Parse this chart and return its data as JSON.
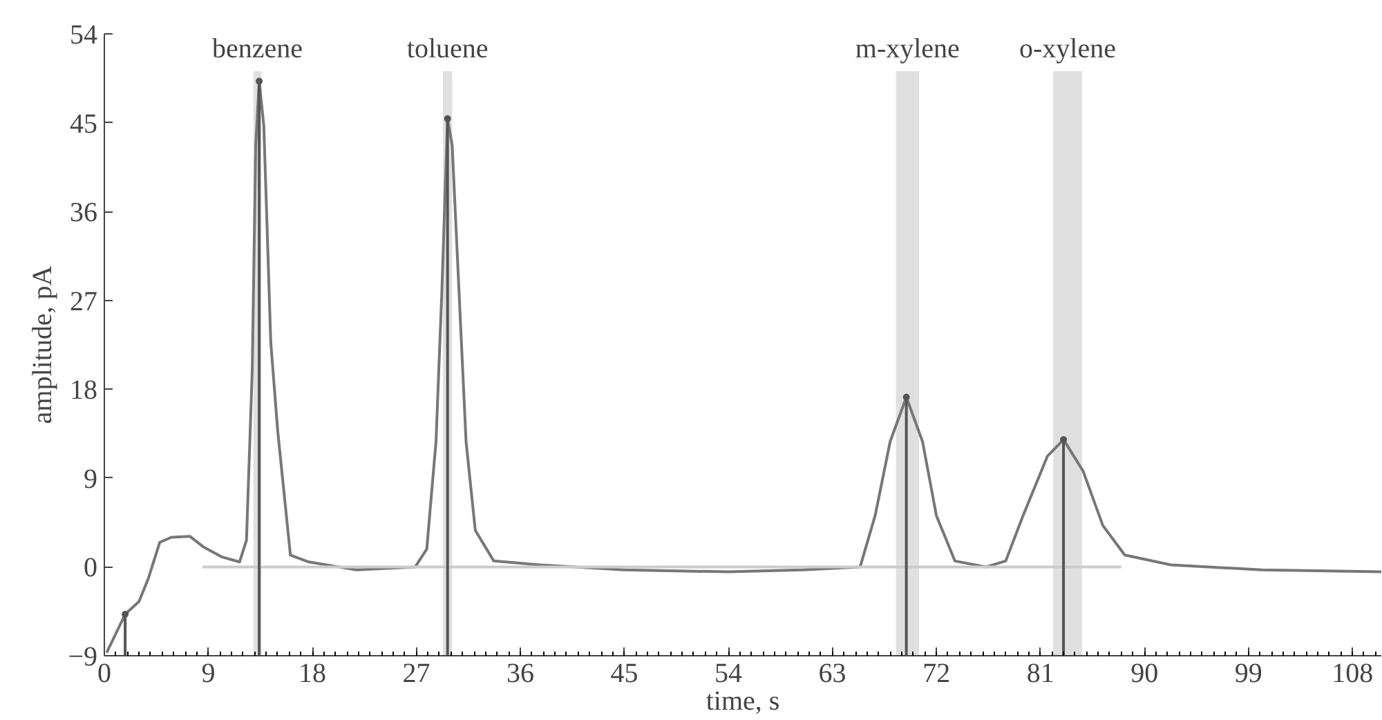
{
  "chart_data": {
    "type": "line",
    "xlabel": "time, s",
    "ylabel": "amplitude, pA",
    "xlim": [
      0,
      110.5
    ],
    "ylim": [
      -9,
      54
    ],
    "xticks": [
      0,
      9,
      18,
      27,
      36,
      45,
      54,
      63,
      72,
      81,
      90,
      99,
      108
    ],
    "yticks": [
      {
        "value": -9,
        "label": "−9"
      },
      0,
      9,
      18,
      27,
      36,
      45,
      54
    ],
    "grid": false,
    "marker": "none",
    "line_style": "solid",
    "series": [
      {
        "color": "#777777",
        "x": [
          0.2,
          1.8,
          3.0,
          3.8,
          4.8,
          5.8,
          7.4,
          8.6,
          10.2,
          11.7,
          12.3,
          12.8,
          13.1,
          13.4,
          13.8,
          14.4,
          15.0,
          16.1,
          17.7,
          21.8,
          26.9,
          27.9,
          28.7,
          29.2,
          29.7,
          30.1,
          30.7,
          31.3,
          32.1,
          33.7,
          37.7,
          45.0,
          54.0,
          60.4,
          65.4,
          66.7,
          68.0,
          69.4,
          70.8,
          72.0,
          73.6,
          76.3,
          78.0,
          79.5,
          81.6,
          83.0,
          84.7,
          86.4,
          88.3,
          92.3,
          100.2,
          110.5
        ],
        "values": [
          -8.7,
          -4.8,
          -3.5,
          -1.2,
          2.5,
          3.0,
          3.1,
          2.0,
          1.0,
          0.5,
          2.7,
          20,
          42.7,
          49.2,
          44.7,
          22.8,
          13.8,
          1.2,
          0.5,
          -0.3,
          0,
          1.8,
          12.7,
          27.7,
          45.4,
          42.7,
          27.7,
          12.7,
          3.7,
          0.6,
          0.2,
          -0.3,
          -0.5,
          -0.3,
          0,
          5.2,
          12.7,
          17.2,
          12.7,
          5.2,
          0.6,
          0,
          0.6,
          5.2,
          11.2,
          12.9,
          9.7,
          4.2,
          1.2,
          0.2,
          -0.3,
          -0.5
        ]
      },
      {
        "color": "#cccccc",
        "x": [
          8.5,
          88
        ],
        "values": [
          0,
          0
        ]
      },
      {
        "type": "bar",
        "color": "#555555",
        "x": [
          1.8,
          13.4,
          29.7,
          69.4,
          83.0
        ],
        "base": [
          -9,
          -9,
          -9,
          -9,
          -9
        ],
        "values": [
          4.2,
          58.2,
          54.4,
          26.2,
          21.9
        ]
      },
      {
        "type": "scatter",
        "marker": "circle",
        "color": "#555555",
        "x": [
          1.8,
          13.4,
          29.7,
          69.4,
          83.0
        ],
        "values": [
          -4.8,
          49.2,
          45.4,
          17.2,
          12.9
        ]
      }
    ],
    "bands": [
      {
        "axis": "x",
        "from": 12.9,
        "to": 13.6,
        "label": "benzene",
        "color": "#e0e0e0"
      },
      {
        "axis": "x",
        "from": 29.3,
        "to": 30.1,
        "label": "toluene",
        "color": "#e0e0e0"
      },
      {
        "axis": "x",
        "from": 68.5,
        "to": 70.5,
        "label": "m-xylene",
        "color": "#e0e0e0"
      },
      {
        "axis": "x",
        "from": 82.1,
        "to": 84.6,
        "label": "o-xylene",
        "color": "#e0e0e0"
      }
    ]
  }
}
